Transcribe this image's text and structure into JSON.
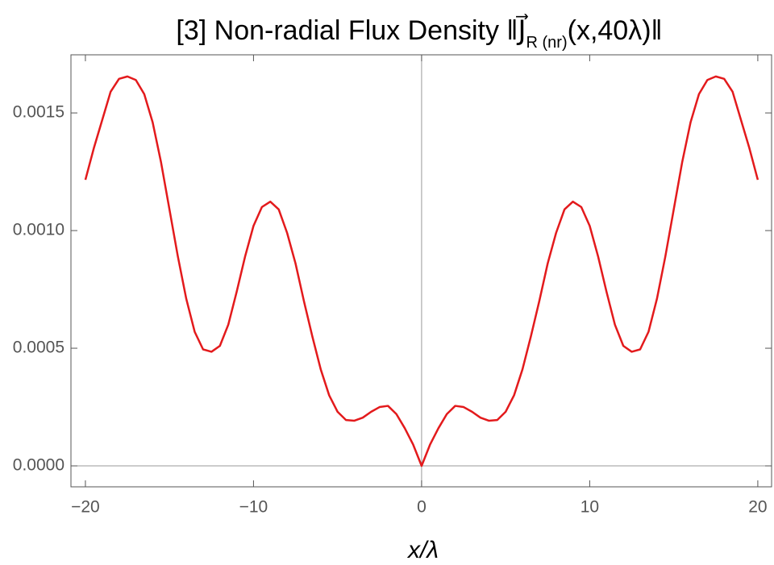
{
  "chart_data": {
    "type": "line",
    "title": "[3] Non-radial Flux Density ‖J⃗",
    "title_subscript": "R (nr)",
    "title_rest": "(x,40λ)‖",
    "x_label": "x/λ",
    "color": "#e31a1c",
    "x": [
      -20,
      -19.5,
      -19,
      -18.5,
      -18,
      -17.5,
      -17,
      -16.5,
      -16,
      -15.5,
      -15,
      -14.5,
      -14,
      -13.5,
      -13,
      -12.5,
      -12,
      -11.5,
      -11,
      -10.5,
      -10,
      -9.5,
      -9,
      -8.5,
      -8,
      -7.5,
      -7,
      -6.5,
      -6,
      -5.5,
      -5,
      -4.5,
      -4,
      -3.5,
      -3,
      -2.5,
      -2,
      -1.5,
      -1,
      -0.5,
      0,
      0.5,
      1,
      1.5,
      2,
      2.5,
      3,
      3.5,
      4,
      4.5,
      5,
      5.5,
      6,
      6.5,
      7,
      7.5,
      8,
      8.5,
      9,
      9.5,
      10,
      10.5,
      11,
      11.5,
      12,
      12.5,
      13,
      13.5,
      14,
      14.5,
      15,
      15.5,
      16,
      16.5,
      17,
      17.5,
      18,
      18.5,
      19,
      19.5,
      20
    ],
    "values": [
      0.001216,
      0.00135,
      0.00147,
      0.00159,
      0.001645,
      0.001655,
      0.00164,
      0.00158,
      0.00146,
      0.00129,
      0.00109,
      0.00089,
      0.00071,
      0.00057,
      0.000495,
      0.000485,
      0.00051,
      0.0006,
      0.00074,
      0.00089,
      0.00102,
      0.0011,
      0.001123,
      0.00109,
      0.00099,
      0.00086,
      0.0007,
      0.00055,
      0.00041,
      0.0003,
      0.00023,
      0.000195,
      0.000192,
      0.000205,
      0.00023,
      0.00025,
      0.000255,
      0.00022,
      0.00016,
      9e-05,
      0,
      9e-05,
      0.00016,
      0.00022,
      0.000255,
      0.00025,
      0.00023,
      0.000205,
      0.000192,
      0.000195,
      0.00023,
      0.0003,
      0.00041,
      0.00055,
      0.0007,
      0.00086,
      0.00099,
      0.00109,
      0.001123,
      0.0011,
      0.00102,
      0.00089,
      0.00074,
      0.0006,
      0.00051,
      0.000485,
      0.000495,
      0.00057,
      0.00071,
      0.00089,
      0.00109,
      0.00129,
      0.00146,
      0.00158,
      0.00164,
      0.001655,
      0.001645,
      0.00159,
      0.00147,
      0.00135,
      0.001216
    ],
    "xlim": [
      -20.86,
      20.82
    ],
    "ylim": [
      -8.9e-05,
      0.001747
    ],
    "xticks": [
      {
        "value": -20,
        "label": "−20"
      },
      {
        "value": -10,
        "label": "−10"
      },
      0,
      10,
      20
    ],
    "yticks": [
      {
        "value": 0,
        "label": "0.0000"
      },
      {
        "value": 0.0005,
        "label": "0.0005"
      },
      {
        "value": 0.001,
        "label": "0.0010"
      },
      {
        "value": 0.0015,
        "label": "0.0015"
      }
    ]
  }
}
